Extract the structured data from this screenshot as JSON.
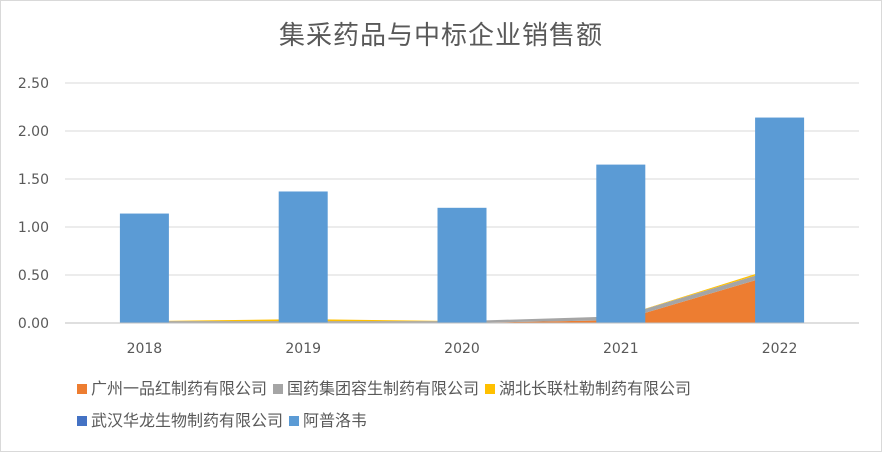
{
  "chart_data": {
    "type": "bar",
    "title": "集采药品与中标企业销售额",
    "categories": [
      "2018",
      "2019",
      "2020",
      "2021",
      "2022"
    ],
    "ylim": [
      0,
      2.5
    ],
    "yticks": [
      "0.00",
      "0.50",
      "1.00",
      "1.50",
      "2.00",
      "2.50"
    ],
    "grid": true,
    "legend_position": "bottom",
    "series": [
      {
        "name": "广州一品红制药有限公司",
        "type": "area",
        "color": "#ED7D31",
        "values": [
          0.0,
          0.0,
          0.0,
          0.03,
          0.52
        ]
      },
      {
        "name": "国药集团容生制药有限公司",
        "type": "area",
        "color": "#A5A5A5",
        "values": [
          0.02,
          0.02,
          0.02,
          0.04,
          0.05
        ]
      },
      {
        "name": "湖北长联杜勒制药有限公司",
        "type": "area",
        "color": "#FFC000",
        "values": [
          0.0,
          0.02,
          0.0,
          0.0,
          0.02
        ]
      },
      {
        "name": "武汉华龙生物制药有限公司",
        "type": "area",
        "color": "#4472C4",
        "values": [
          0.0,
          0.0,
          0.0,
          0.0,
          0.0
        ]
      },
      {
        "name": "阿普洛韦",
        "type": "bar",
        "color": "#5B9BD5",
        "values": [
          1.14,
          1.37,
          1.2,
          1.65,
          2.14
        ]
      }
    ]
  }
}
